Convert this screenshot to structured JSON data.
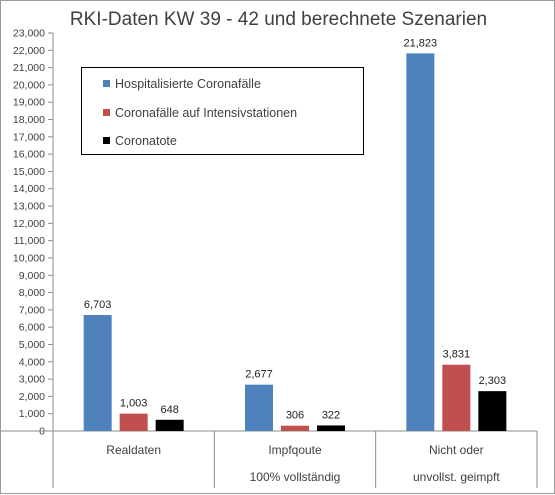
{
  "chart_data": {
    "type": "bar",
    "title": "RKI-Daten KW 39 - 42 und berechnete Szenarien",
    "categories": [
      {
        "lines": [
          "Realdaten"
        ]
      },
      {
        "lines": [
          "Impfqoute",
          "100% vollständig"
        ]
      },
      {
        "lines": [
          "Nicht oder",
          "unvollst. geimpft"
        ]
      }
    ],
    "series": [
      {
        "name": "Hospitalisierte Coronafälle",
        "color": "#4f81bd",
        "values": [
          6703,
          2677,
          21823
        ],
        "labels": [
          "6,703",
          "2,677",
          "21,823"
        ]
      },
      {
        "name": "Coronafälle auf Intensivstationen",
        "color": "#c0504d",
        "values": [
          1003,
          306,
          3831
        ],
        "labels": [
          "1,003",
          "306",
          "3,831"
        ]
      },
      {
        "name": "Coronatote",
        "color": "#000000",
        "values": [
          648,
          322,
          2303
        ],
        "labels": [
          "648",
          "322",
          "2,303"
        ]
      }
    ],
    "ylim": [
      0,
      23000
    ],
    "ytick_step": 1000,
    "ytick_labels": [
      "0",
      "1,000",
      "2,000",
      "3,000",
      "4,000",
      "5,000",
      "6,000",
      "7,000",
      "8,000",
      "9,000",
      "10,000",
      "11,000",
      "12,000",
      "13,000",
      "14,000",
      "15,000",
      "16,000",
      "17,000",
      "18,000",
      "19,000",
      "20,000",
      "21,000",
      "22,000",
      "23,000"
    ],
    "grid": false,
    "legend_position": "top-left"
  }
}
